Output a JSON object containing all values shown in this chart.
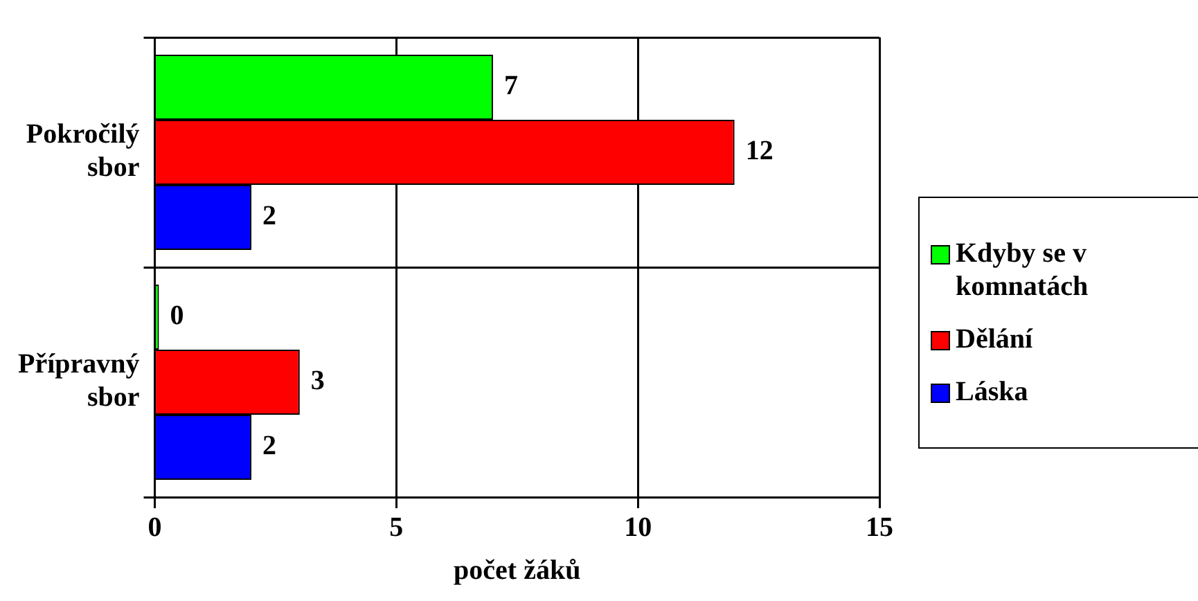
{
  "chart_data": {
    "type": "bar",
    "orientation": "horizontal",
    "xlabel": "počet žáků",
    "categories": [
      "Pokročilý sbor",
      "Přípravný sbor"
    ],
    "series": [
      {
        "name": "Kdyby se v komnatách",
        "color": "#00ff00",
        "values": [
          7,
          0
        ]
      },
      {
        "name": "Dělání",
        "color": "#ff0000",
        "values": [
          12,
          3
        ]
      },
      {
        "name": "Láska",
        "color": "#0000ff",
        "values": [
          2,
          2
        ]
      }
    ],
    "xlim": [
      0,
      15
    ],
    "xticks": [
      0,
      5,
      10,
      15
    ],
    "grid": true,
    "legend": "right",
    "data_labels": true
  }
}
